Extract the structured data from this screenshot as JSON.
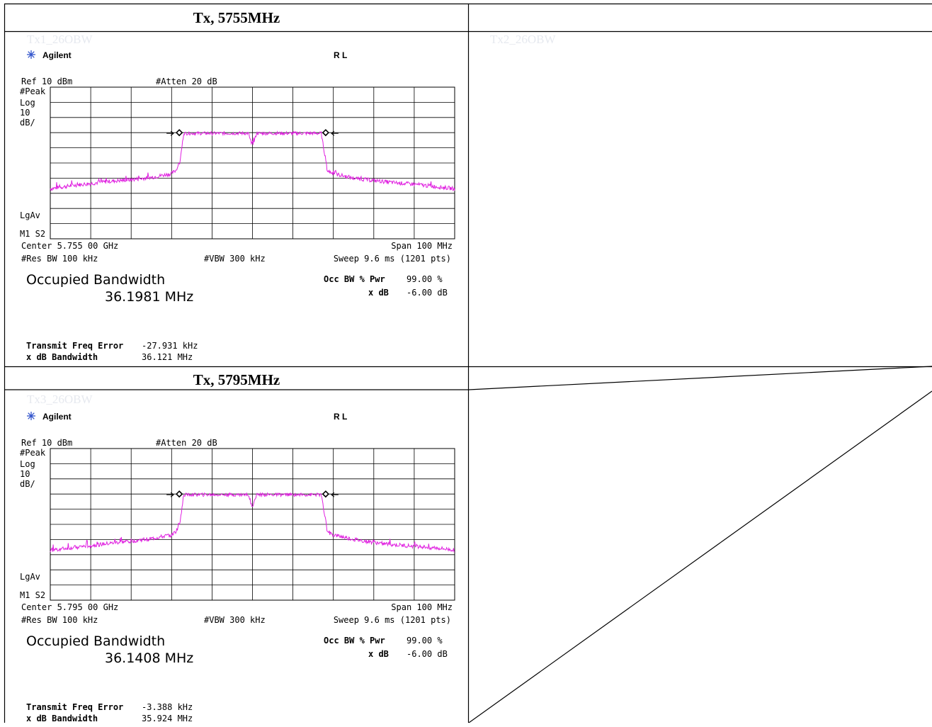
{
  "table": {
    "headers": [
      "Tx, 5755MHz",
      "Tx, 5795MHz"
    ],
    "watermarks": [
      "Tx1_26OBW",
      "Tx2_26OBW",
      "Tx3_26OBW"
    ]
  },
  "panels": [
    {
      "brand": "Agilent",
      "mode": "R L",
      "ref": "Ref 10 dBm",
      "atten": "#Atten 20 dB",
      "detector": "#Peak",
      "scale1": "Log",
      "scale2": "10",
      "scale3": "dB/",
      "avg": "LgAv",
      "markers": "M1 S2",
      "center": "Center 5.755 00 GHz",
      "span": "Span 100 MHz",
      "rbw": "#Res BW 100 kHz",
      "vbw": "#VBW 300 kHz",
      "sweep": "Sweep 9.6 ms (1201 pts)",
      "obw_title": "Occupied Bandwidth",
      "obw_value": "36.1981 MHz",
      "occ_label": "Occ BW % Pwr",
      "occ_value": "99.00 %",
      "xdb_label": "x dB",
      "xdb_value": "-6.00 dB",
      "tfe_label": "Transmit Freq Error",
      "tfe_value": "-27.931 kHz",
      "xbw_label": "x dB Bandwidth",
      "xbw_value": "36.121 MHz"
    },
    {
      "brand": "Agilent",
      "mode": "R L",
      "ref": "Ref 10 dBm",
      "atten": "#Atten 20 dB",
      "detector": "#Peak",
      "scale1": "Log",
      "scale2": "10",
      "scale3": "dB/",
      "avg": "LgAv",
      "markers": "M1 S2",
      "center": "Center 5.795 00 GHz",
      "span": "Span 100 MHz",
      "rbw": "#Res BW 100 kHz",
      "vbw": "#VBW 300 kHz",
      "sweep": "Sweep 9.6 ms (1201 pts)",
      "obw_title": "Occupied Bandwidth",
      "obw_value": "36.1408 MHz",
      "occ_label": "Occ BW % Pwr",
      "occ_value": "99.00 %",
      "xdb_label": "x dB",
      "xdb_value": "-6.00 dB",
      "tfe_label": "Transmit Freq Error",
      "tfe_value": "-3.388 kHz",
      "xbw_label": "x dB Bandwidth",
      "xbw_value": "35.924 MHz"
    }
  ],
  "colors": {
    "trace": "#e020e0",
    "grid": "#000000",
    "watermark": "#e6e9ef"
  },
  "chart_data": [
    {
      "type": "line",
      "x_unit": "MHz offset from center",
      "xlim": [
        -50,
        50
      ],
      "ylim": [
        -90,
        10
      ],
      "y_unit": "dBm",
      "grid": true,
      "series": [
        {
          "x": [
            -50,
            -45,
            -40,
            -35,
            -30,
            -25,
            -20,
            -19,
            -18,
            -17,
            -15,
            -10,
            -5,
            -1,
            -0.3,
            0,
            0.3,
            1,
            5,
            10,
            15,
            17,
            18,
            18.5,
            20,
            25,
            30,
            35,
            40,
            45,
            50
          ],
          "y": [
            -57,
            -55,
            -53.5,
            -52,
            -51,
            -49.5,
            -47,
            -45,
            -40,
            -20,
            -20,
            -20,
            -20,
            -20,
            -27,
            -27,
            -27,
            -20,
            -20,
            -20,
            -20,
            -20,
            -36,
            -45,
            -47,
            -50,
            -51.5,
            -53,
            -54,
            -55.5,
            -57
          ]
        }
      ],
      "markers": [
        {
          "x": -18.1,
          "y": -20
        },
        {
          "x": 18.1,
          "y": -20
        }
      ]
    },
    {
      "type": "line",
      "x_unit": "MHz offset from center",
      "xlim": [
        -50,
        50
      ],
      "ylim": [
        -90,
        10
      ],
      "y_unit": "dBm",
      "grid": true,
      "series": [
        {
          "x": [
            -50,
            -45,
            -40,
            -35,
            -30,
            -25,
            -20,
            -19,
            -18,
            -17,
            -15,
            -10,
            -5,
            -1,
            -0.3,
            0,
            0.3,
            1,
            5,
            10,
            15,
            17,
            18,
            18.5,
            20,
            25,
            30,
            35,
            40,
            45,
            50
          ],
          "y": [
            -57,
            -55.5,
            -54,
            -52.5,
            -51,
            -49.5,
            -47,
            -45,
            -40,
            -20,
            -20,
            -20,
            -20,
            -20,
            -27,
            -27,
            -27,
            -20,
            -20,
            -20,
            -20,
            -20,
            -36,
            -45,
            -47,
            -50,
            -52,
            -53.5,
            -54.5,
            -55.5,
            -57
          ]
        }
      ],
      "markers": [
        {
          "x": -18.1,
          "y": -20
        },
        {
          "x": 18.1,
          "y": -20
        }
      ]
    }
  ]
}
